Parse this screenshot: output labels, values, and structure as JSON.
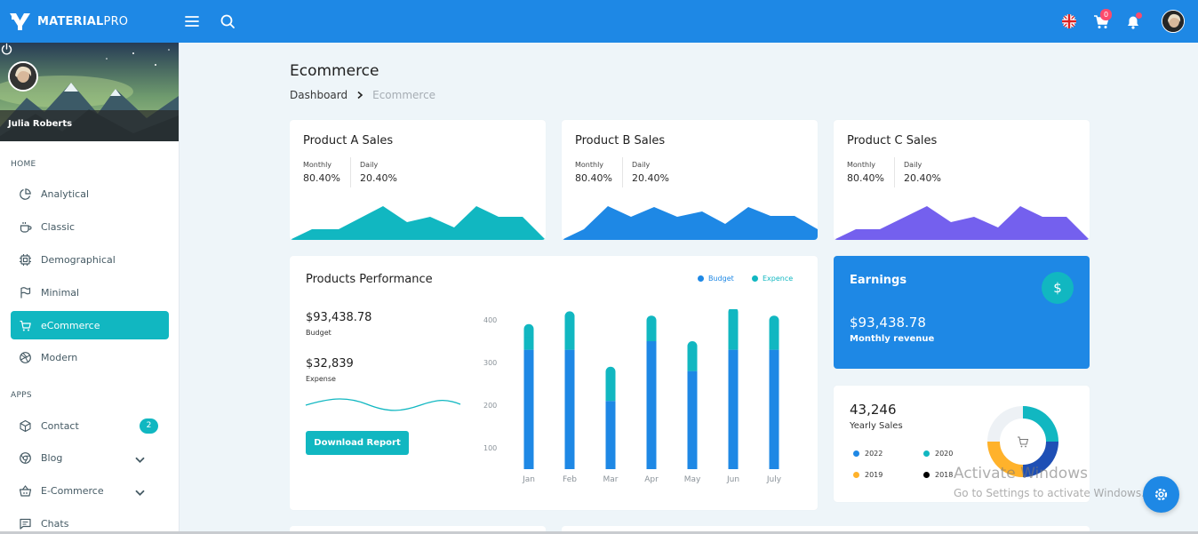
{
  "brand": {
    "bold": "MATERIAL",
    "light": "PRO"
  },
  "topbar": {
    "cart_count": "0",
    "icons": [
      "menu-icon",
      "search-icon",
      "flag-uk-icon",
      "cart-icon",
      "bell-icon",
      "user-avatar"
    ]
  },
  "sidebar": {
    "user": "Julia Roberts",
    "sections": [
      {
        "caption": "HOME"
      },
      {
        "caption": "APPS"
      }
    ],
    "items": [
      {
        "label": "Analytical",
        "icon": "pie-chart-icon"
      },
      {
        "label": "Classic",
        "icon": "cup-icon"
      },
      {
        "label": "Demographical",
        "icon": "cpu-icon"
      },
      {
        "label": "Minimal",
        "icon": "flag-icon"
      },
      {
        "label": "eCommerce",
        "icon": "shopping-cart-icon",
        "active": true
      },
      {
        "label": "Modern",
        "icon": "aperture-icon"
      },
      {
        "label": "Contact",
        "icon": "box-icon",
        "badge": "2"
      },
      {
        "label": "Blog",
        "icon": "chrome-icon"
      },
      {
        "label": "E-Commerce",
        "icon": "basket-icon"
      },
      {
        "label": "Chats",
        "icon": "message-icon"
      }
    ]
  },
  "page": {
    "title": "Ecommerce",
    "breadcrumb": [
      "Dashboard",
      "Ecommerce"
    ]
  },
  "sales_cards": [
    {
      "title": "Product A Sales",
      "monthly_label": "Monthly",
      "monthly": "80.40%",
      "daily_label": "Daily",
      "daily": "20.40%",
      "color": "#11b7c1"
    },
    {
      "title": "Product B Sales",
      "monthly_label": "Monthly",
      "monthly": "80.40%",
      "daily_label": "Daily",
      "daily": "20.40%",
      "color": "#1e88e5"
    },
    {
      "title": "Product C Sales",
      "monthly_label": "Monthly",
      "monthly": "80.40%",
      "daily_label": "Daily",
      "daily": "20.40%",
      "color": "#7460ee"
    }
  ],
  "performance": {
    "title": "Products Performance",
    "legend": [
      {
        "name": "Budget",
        "color": "#1e88e5"
      },
      {
        "name": "Expence",
        "color": "#11b7c1"
      }
    ],
    "budget_value": "$93,438.78",
    "budget_label": "Budget",
    "expense_value": "$32,839",
    "expense_label": "Expense",
    "button": "Download Report"
  },
  "chart_data": {
    "type": "bar",
    "stacked": true,
    "categories": [
      "Jan",
      "Feb",
      "Mar",
      "Apr",
      "May",
      "Jun",
      "July"
    ],
    "series": [
      {
        "name": "Budget",
        "color": "#1e88e5",
        "values": [
          280,
          280,
          160,
          300,
          230,
          280,
          280
        ]
      },
      {
        "name": "Expence",
        "color": "#11b7c1",
        "values": [
          60,
          90,
          80,
          60,
          70,
          100,
          80
        ]
      }
    ],
    "yticks": [
      "400",
      "300",
      "200",
      "100"
    ],
    "ylim": [
      50,
      400
    ],
    "grid": false,
    "legend": "top-right"
  },
  "earnings": {
    "title": "Earnings",
    "icon": "dollar-icon",
    "value": "$93,438.78",
    "label": "Monthly revenue"
  },
  "yearly_sales": {
    "value": "43,246",
    "label": "Yearly Sales",
    "legend": [
      {
        "year": "2022",
        "color": "#1e88e5"
      },
      {
        "year": "2020",
        "color": "#11b7c1"
      },
      {
        "year": "2019",
        "color": "#ffb22b"
      },
      {
        "year": "2018",
        "color": "#000000"
      }
    ]
  },
  "watermark": {
    "line1": "Activate Windows",
    "line2": "Go to Settings to activate Windows."
  }
}
